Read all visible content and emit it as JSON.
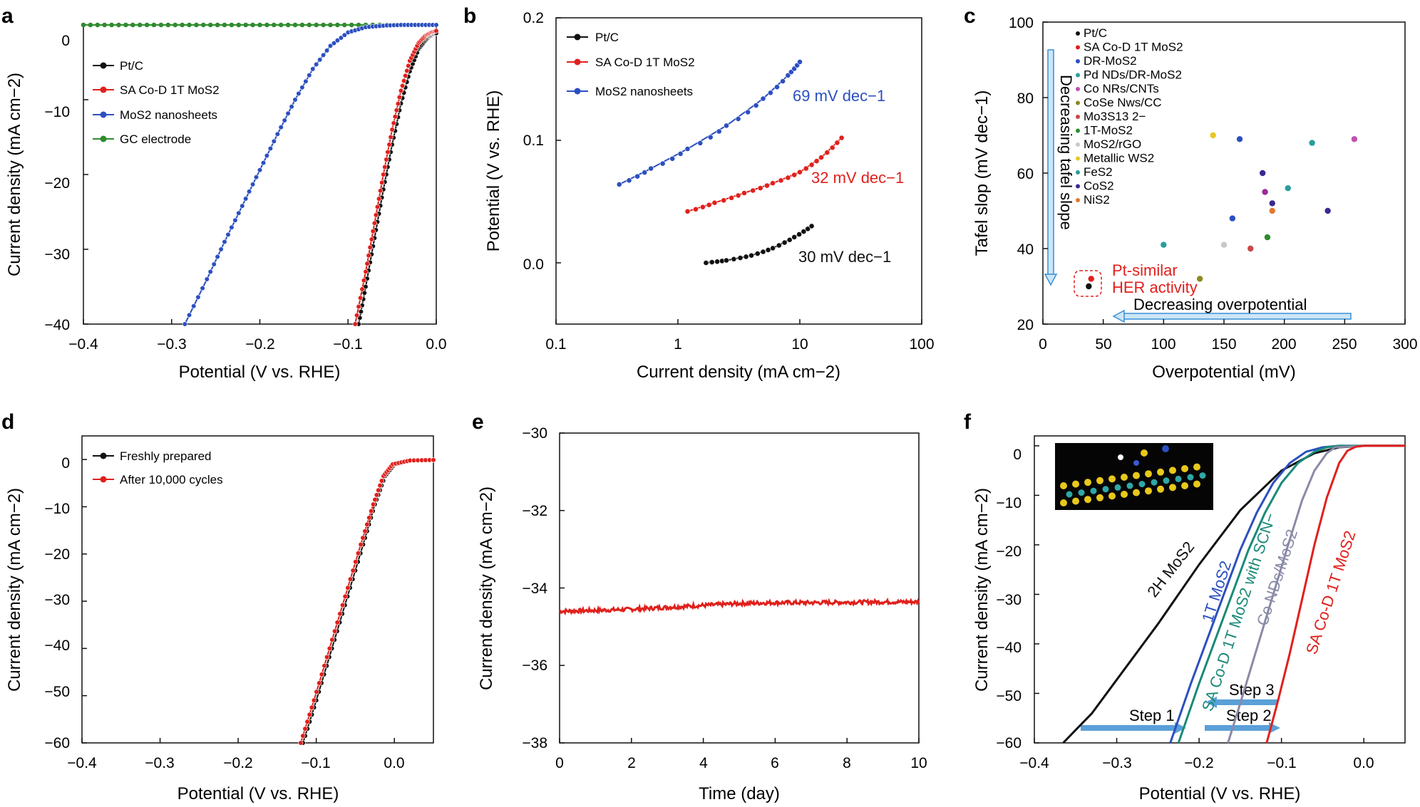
{
  "chart_data": [
    {
      "panel": "a",
      "type": "line",
      "xlabel": "Potential (V vs. RHE)",
      "ylabel": "Current density (mA cm−2)",
      "xlim": [
        -0.4,
        0.0
      ],
      "ylim": [
        -40,
        0
      ],
      "xticks": [
        "−0.4",
        "−0.3",
        "−0.2",
        "−0.1",
        "0.0"
      ],
      "yticks": [
        "0",
        "−10",
        "−20",
        "−30",
        "−40"
      ],
      "legend": "top-left",
      "series": [
        {
          "name": "Pt/C",
          "color": "#111111",
          "x": [
            -0.088,
            -0.08,
            -0.07,
            -0.06,
            -0.05,
            -0.04,
            -0.03,
            -0.02,
            -0.013,
            -0.008,
            -0.004,
            0.0
          ],
          "y": [
            -40,
            -35,
            -28.5,
            -22,
            -16,
            -10.5,
            -6.2,
            -3.2,
            -2.2,
            -1.6,
            -1.3,
            -1.1
          ]
        },
        {
          "name": "SA Co-D 1T MoS2",
          "color": "#e0201c",
          "x": [
            -0.092,
            -0.08,
            -0.07,
            -0.06,
            -0.05,
            -0.04,
            -0.03,
            -0.02,
            -0.012,
            -0.006,
            0.0
          ],
          "y": [
            -40,
            -33,
            -26.5,
            -20,
            -14,
            -8.8,
            -4.8,
            -2.4,
            -1.4,
            -1.0,
            -0.8
          ]
        },
        {
          "name": "MoS2 nanosheets",
          "color": "#2b4fc0",
          "x": [
            -0.285,
            -0.26,
            -0.24,
            -0.22,
            -0.2,
            -0.18,
            -0.16,
            -0.14,
            -0.12,
            -0.1,
            -0.08,
            -0.06,
            -0.04,
            -0.02,
            0.0
          ],
          "y": [
            -40,
            -34,
            -29,
            -24.2,
            -19.4,
            -14.6,
            -10,
            -5.9,
            -2.8,
            -1.0,
            -0.3,
            -0.1,
            0,
            0,
            0
          ]
        },
        {
          "name": "GC electrode",
          "color": "#2e8b2e",
          "x": [
            -0.4,
            0.0
          ],
          "y": [
            0,
            0
          ]
        }
      ]
    },
    {
      "panel": "b",
      "type": "line",
      "xlabel": "Current density (mA cm−2)",
      "ylabel": "Potential (V vs. RHE)",
      "xscale": "log",
      "xlim": [
        0.1,
        100
      ],
      "ylim": [
        -0.05,
        0.2
      ],
      "xticks": [
        "0.1",
        "1",
        "10",
        "100"
      ],
      "yticks": [
        "0.0",
        "0.1",
        "0.2"
      ],
      "legend": "top-left",
      "series": [
        {
          "name": "Pt/C",
          "color": "#111111",
          "x": [
            1.7,
            2.5,
            4,
            6,
            9,
            12.5
          ],
          "y": [
            0.0,
            0.002,
            0.006,
            0.012,
            0.021,
            0.03
          ]
        },
        {
          "name": "SA Co-D 1T MoS2",
          "color": "#e0201c",
          "x": [
            1.2,
            2,
            3.5,
            6,
            10,
            15,
            22
          ],
          "y": [
            0.042,
            0.049,
            0.057,
            0.065,
            0.074,
            0.086,
            0.102
          ]
        },
        {
          "name": "MoS2 nanosheets",
          "color": "#2b4fc0",
          "x": [
            0.33,
            0.6,
            1.2,
            2.5,
            5,
            8,
            10
          ],
          "y": [
            0.064,
            0.077,
            0.093,
            0.112,
            0.134,
            0.153,
            0.164
          ]
        }
      ],
      "annotations": [
        {
          "text": "69 mV dec−1",
          "color": "#2b4fc0"
        },
        {
          "text": "32 mV dec−1",
          "color": "#e0201c"
        },
        {
          "text": "30 mV dec−1",
          "color": "#111111"
        }
      ]
    },
    {
      "panel": "c",
      "type": "scatter",
      "xlabel": "Overpotential (mV)",
      "ylabel": "Tafel slop (mV dec−1)",
      "xlim": [
        0,
        300
      ],
      "ylim": [
        20,
        100
      ],
      "xticks": [
        "0",
        "50",
        "100",
        "150",
        "200",
        "250",
        "300"
      ],
      "yticks": [
        "20",
        "40",
        "60",
        "80",
        "100"
      ],
      "legend": "top-left",
      "points": [
        {
          "name": "Pt/C",
          "color": "#111111",
          "x": 38,
          "y": 30
        },
        {
          "name": "SA Co-D 1T MoS2",
          "color": "#e0201c",
          "x": 40,
          "y": 32
        },
        {
          "name": "DR-MoS2",
          "color": "#2b4fc0",
          "x": 163,
          "y": 69
        },
        {
          "name": "Pd NDs/DR-MoS2",
          "color": "#2a9d9d",
          "x": 223,
          "y": 68
        },
        {
          "name": "Co NRs/CNTs",
          "color": "#c050b0",
          "x": 258,
          "y": 69
        },
        {
          "name": "CoSe Nws/CC",
          "color": "#8a8a20",
          "x": 130,
          "y": 32
        },
        {
          "name": "Mo3S13 2−",
          "color": "#c84848",
          "x": 172,
          "y": 40
        },
        {
          "name": "1T-MoS2",
          "color": "#2e8b2e",
          "x": 186,
          "y": 43
        },
        {
          "name": "MoS2/rGO",
          "color": "#c8c8c8",
          "x": 150,
          "y": 41
        },
        {
          "name": "Metallic WS2",
          "color": "#e8c820",
          "x": 141,
          "y": 70
        },
        {
          "name": "FeS2",
          "color": "#2a9d9d",
          "x": 100,
          "y": 41
        },
        {
          "name": "FeS2",
          "color": "#2a9d9d",
          "x": 203,
          "y": 56
        },
        {
          "name": "CoS2",
          "color": "#3a2a90",
          "x": 182,
          "y": 60
        },
        {
          "name": "CoS2",
          "color": "#3a2a90",
          "x": 190,
          "y": 52
        },
        {
          "name": "CoS2",
          "color": "#3a2a90",
          "x": 236,
          "y": 50
        },
        {
          "name": "Co NRs/CNTs",
          "color": "#9a2a9a",
          "x": 184,
          "y": 55
        },
        {
          "name": "DR-MoS2",
          "color": "#2b4fc0",
          "x": 157,
          "y": 48
        },
        {
          "name": "NiS2",
          "color": "#e07a30",
          "x": 190,
          "y": 50
        }
      ],
      "legend_entries": [
        "Pt/C",
        "SA Co-D 1T MoS2",
        "DR-MoS2",
        "Pd NDs/DR-MoS2",
        "Co NRs/CNTs",
        "CoSe Nws/CC",
        "Mo3S13 2−",
        "1T-MoS2",
        "MoS2/rGO",
        "Metallic WS2",
        "FeS2",
        "CoS2",
        "NiS2"
      ],
      "annotations": [
        {
          "text": "Decreasing tafel slope"
        },
        {
          "text": "Decreasing overpotential"
        },
        {
          "text": "Pt-similar",
          "color": "#e0201c"
        },
        {
          "text": "HER activity",
          "color": "#e0201c"
        }
      ]
    },
    {
      "panel": "d",
      "type": "line",
      "xlabel": "Potential (V vs. RHE)",
      "ylabel": "Current density (mA cm−2)",
      "xlim": [
        -0.4,
        0.05
      ],
      "ylim": [
        -60,
        5
      ],
      "xticks": [
        "−0.4",
        "−0.3",
        "−0.2",
        "−0.1",
        "0.0"
      ],
      "yticks": [
        "0",
        "−10",
        "−20",
        "−30",
        "−40",
        "−50",
        "−60"
      ],
      "legend": "top-left",
      "series": [
        {
          "name": "Freshly prepared",
          "color": "#111111",
          "x": [
            -0.117,
            -0.1,
            -0.08,
            -0.06,
            -0.04,
            -0.025,
            -0.012,
            0.0,
            0.02,
            0.05
          ],
          "y": [
            -60,
            -51,
            -40,
            -29,
            -18,
            -9.5,
            -3.5,
            -1.0,
            -0.2,
            -0.1
          ]
        },
        {
          "name": "After 10,000 cycles",
          "color": "#e0201c",
          "x": [
            -0.12,
            -0.103,
            -0.083,
            -0.063,
            -0.043,
            -0.027,
            -0.014,
            -0.002,
            0.02,
            0.05
          ],
          "y": [
            -60,
            -51,
            -40,
            -29,
            -18,
            -9.5,
            -3.5,
            -1.0,
            -0.2,
            -0.1
          ]
        }
      ]
    },
    {
      "panel": "e",
      "type": "line",
      "xlabel": "Time (day)",
      "ylabel": "Current density (mA cm−2)",
      "xlim": [
        0,
        10
      ],
      "ylim": [
        -38,
        -30
      ],
      "xticks": [
        "0",
        "2",
        "4",
        "6",
        "8",
        "10"
      ],
      "yticks": [
        "−30",
        "−32",
        "−34",
        "−36",
        "−38"
      ],
      "series": [
        {
          "name": "",
          "color": "#e0201c",
          "x": [
            0,
            1,
            2,
            3,
            4,
            5,
            6,
            7,
            8,
            9,
            10
          ],
          "y": [
            -34.6,
            -34.58,
            -34.55,
            -34.5,
            -34.45,
            -34.4,
            -34.38,
            -34.38,
            -34.37,
            -34.36,
            -34.36
          ]
        }
      ]
    },
    {
      "panel": "f",
      "type": "line",
      "xlabel": "Potential (V vs. RHE)",
      "ylabel": "Current density (mA cm−2)",
      "xlim": [
        -0.4,
        0.05
      ],
      "ylim": [
        -60,
        2
      ],
      "xticks": [
        "−0.4",
        "−0.3",
        "−0.2",
        "−0.1",
        "0.0"
      ],
      "yticks": [
        "0",
        "−10",
        "−20",
        "−30",
        "−40",
        "−50",
        "−60"
      ],
      "series": [
        {
          "name": "2H MoS2",
          "color": "#111111",
          "x": [
            -0.365,
            -0.33,
            -0.29,
            -0.25,
            -0.2,
            -0.15,
            -0.1,
            -0.06,
            -0.03,
            0.0,
            0.05
          ],
          "y": [
            -60,
            -54,
            -45,
            -36,
            -24,
            -13,
            -5,
            -1.5,
            -0.3,
            0,
            0
          ]
        },
        {
          "name": "1T MoS2",
          "color": "#2b4fc0",
          "x": [
            -0.235,
            -0.21,
            -0.19,
            -0.17,
            -0.15,
            -0.13,
            -0.11,
            -0.09,
            -0.07,
            -0.05,
            -0.03,
            0.0,
            0.05
          ],
          "y": [
            -60,
            -48,
            -39,
            -30,
            -21,
            -13.5,
            -7.5,
            -3.5,
            -1.2,
            -0.3,
            0,
            0,
            0
          ]
        },
        {
          "name": "SA Co-D 1T MoS2 with SCN−",
          "color": "#1a8a78",
          "x": [
            -0.225,
            -0.2,
            -0.18,
            -0.16,
            -0.14,
            -0.12,
            -0.1,
            -0.08,
            -0.06,
            -0.045,
            -0.03,
            0.0,
            0.05
          ],
          "y": [
            -60,
            -48,
            -39,
            -30,
            -21,
            -13.5,
            -7.5,
            -3.5,
            -1.2,
            -0.3,
            0,
            0,
            0
          ]
        },
        {
          "name": "Co NDs/MoS2",
          "color": "#8a8aa8",
          "x": [
            -0.165,
            -0.15,
            -0.13,
            -0.11,
            -0.09,
            -0.075,
            -0.06,
            -0.045,
            -0.035,
            0.0,
            0.05
          ],
          "y": [
            -60,
            -52,
            -41,
            -30,
            -19,
            -11,
            -5,
            -1.5,
            -0.3,
            0,
            0
          ]
        },
        {
          "name": "SA Co-D 1T MoS2",
          "color": "#e0201c",
          "x": [
            -0.118,
            -0.105,
            -0.09,
            -0.075,
            -0.06,
            -0.045,
            -0.03,
            -0.02,
            -0.01,
            0.0,
            0.05
          ],
          "y": [
            -60,
            -52,
            -42,
            -31,
            -20,
            -10.5,
            -3.5,
            -1.0,
            -0.2,
            0,
            0
          ]
        }
      ],
      "annotations": [
        {
          "text": "Step 1"
        },
        {
          "text": "Step 2"
        },
        {
          "text": "Step 3"
        }
      ]
    }
  ]
}
